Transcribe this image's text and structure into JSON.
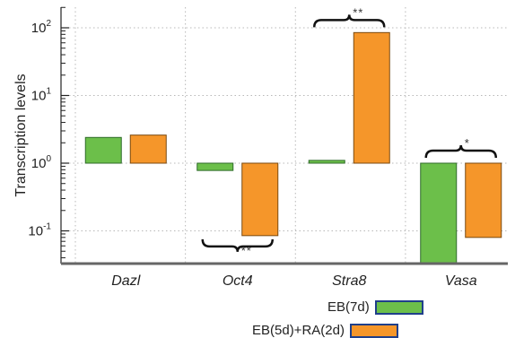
{
  "chart_data": {
    "type": "bar",
    "yscale": "log",
    "ylabel": "Transcription levels",
    "xlabel": "",
    "title": "",
    "ylim": [
      0.032,
      200
    ],
    "baseline": 1,
    "grid": true,
    "categories": [
      "Dazl",
      "Oct4",
      "Stra8",
      "Vasa"
    ],
    "yticks": [
      {
        "base": "10",
        "exp": "-1"
      },
      {
        "base": "10",
        "exp": "0"
      },
      {
        "base": "10",
        "exp": "1"
      },
      {
        "base": "10",
        "exp": "2"
      }
    ],
    "series": [
      {
        "name": "EB(7d)",
        "color": "#6cbf4a",
        "stroke": "#2f6b2a",
        "values": [
          2.4,
          0.78,
          1.1,
          0.032
        ]
      },
      {
        "name": "EB(5d)+RA(2d)",
        "color": "#f5962a",
        "stroke": "#7a4a10",
        "values": [
          2.6,
          0.085,
          85,
          0.08
        ]
      }
    ],
    "significance": [
      {
        "category": "Oct4",
        "label": "**",
        "position": "below"
      },
      {
        "category": "Stra8",
        "label": "**",
        "position": "above"
      },
      {
        "category": "Vasa",
        "label": "*",
        "position": "above"
      }
    ],
    "legend_position": "bottom-right"
  }
}
